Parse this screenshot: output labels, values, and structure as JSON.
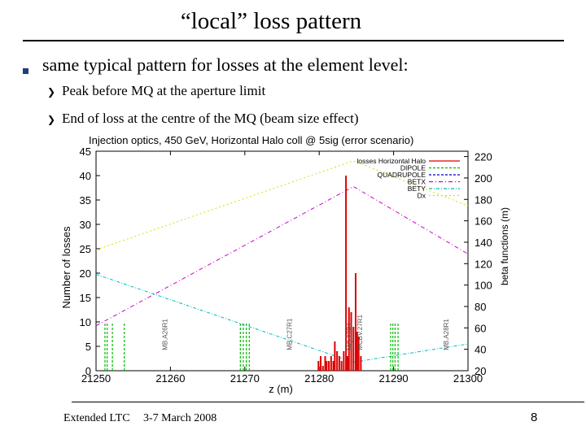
{
  "slide": {
    "title": "“local” loss pattern",
    "bullet": "same typical pattern for losses at the element level:",
    "sub_bullets": [
      "Peak before MQ at the aperture limit",
      "End of loss at the centre of the MQ (beam size effect)"
    ],
    "footer": "Extended LTC",
    "date": "3-7 March 2008",
    "page": "8"
  },
  "chart_data": {
    "type": "bar",
    "title": "Injection optics, 450 GeV, Horizontal Halo coll @ 5sig (error scenario)",
    "xlabel": "z (m)",
    "ylabel": "Number of losses",
    "y2label": "beta functions (m)",
    "xlim": [
      21250,
      21300
    ],
    "ylim": [
      0,
      45
    ],
    "y2lim": [
      20,
      225
    ],
    "x_ticks": [
      "21250",
      "21260",
      "21270",
      "21280",
      "21290",
      "21300"
    ],
    "y_ticks": [
      "0",
      "5",
      "10",
      "15",
      "20",
      "25",
      "30",
      "35",
      "40",
      "45"
    ],
    "y2_ticks": [
      "20",
      "40",
      "60",
      "80",
      "100",
      "120",
      "140",
      "160",
      "180",
      "200",
      "220"
    ],
    "legend": [
      "losses Horizontal Halo",
      "DIPOLE",
      "QUADRUPOLE",
      "BETX",
      "BETY",
      "Dx"
    ],
    "legend_position": "top-right",
    "element_labels": [
      "MB.A26R1",
      "MB.C27R1",
      "MQ.27R1",
      "MCBV.27R1",
      "MB.A28R1"
    ],
    "colors": {
      "losses": "#dd0000",
      "dipole": "#00bb00",
      "quadrupole": "#0000cc",
      "betx": "#cc00cc",
      "bety": "#00bbbb",
      "dx": "#dddd00"
    },
    "losses": {
      "x": [
        21279.9,
        21280.2,
        21280.5,
        21280.8,
        21281.0,
        21281.3,
        21281.6,
        21281.9,
        21282.1,
        21282.4,
        21282.7,
        21283.0,
        21283.3,
        21283.6,
        21283.8,
        21284.0,
        21284.3,
        21284.6,
        21284.9,
        21285.1,
        21285.3,
        21285.6
      ],
      "values": [
        2,
        3,
        1,
        3,
        2,
        2,
        3,
        2,
        6,
        4,
        3,
        2,
        4,
        40,
        3,
        13,
        12,
        9,
        20,
        8,
        7,
        3
      ]
    },
    "dipole_markers_x": [
      21251.2,
      21251.5,
      21252.2,
      21253.8,
      21269.4,
      21269.8,
      21270.2,
      21270.6,
      21289.6,
      21289.9,
      21290.2,
      21290.6
    ],
    "quadrupole_marker_x": [
      21284.6
    ],
    "betx": {
      "x": [
        21250,
        21284.6,
        21300
      ],
      "y": [
        62,
        192,
        129
      ]
    },
    "bety": {
      "x": [
        21250,
        21284.6,
        21300
      ],
      "y": [
        110,
        28,
        45
      ]
    },
    "dx": {
      "x": [
        21250,
        21284.6,
        21300
      ],
      "y": [
        133,
        216,
        174
      ]
    }
  }
}
